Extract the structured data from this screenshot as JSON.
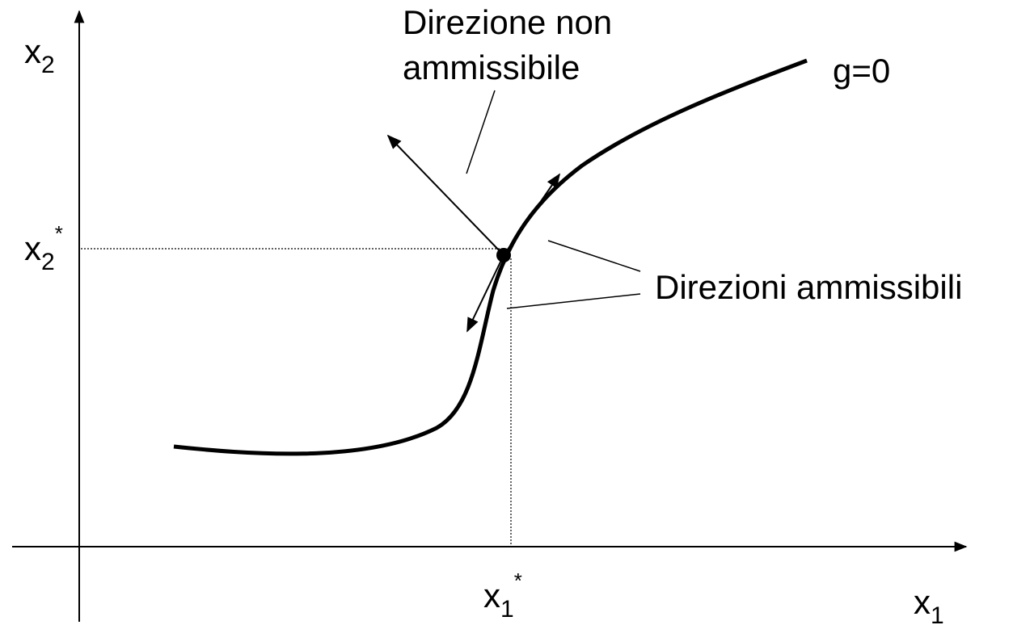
{
  "labels": {
    "y_axis": {
      "base": "x",
      "sub": "2"
    },
    "x_axis": {
      "base": "x",
      "sub": "1"
    },
    "x2_star": {
      "base": "x",
      "sub": "2",
      "sup": "*"
    },
    "x1_star": {
      "base": "x",
      "sub": "1",
      "sup": "*"
    },
    "curve": "g=0",
    "infeasible": [
      "Direzione non",
      "ammissibile"
    ],
    "feasible": "Direzioni ammissibili"
  }
}
